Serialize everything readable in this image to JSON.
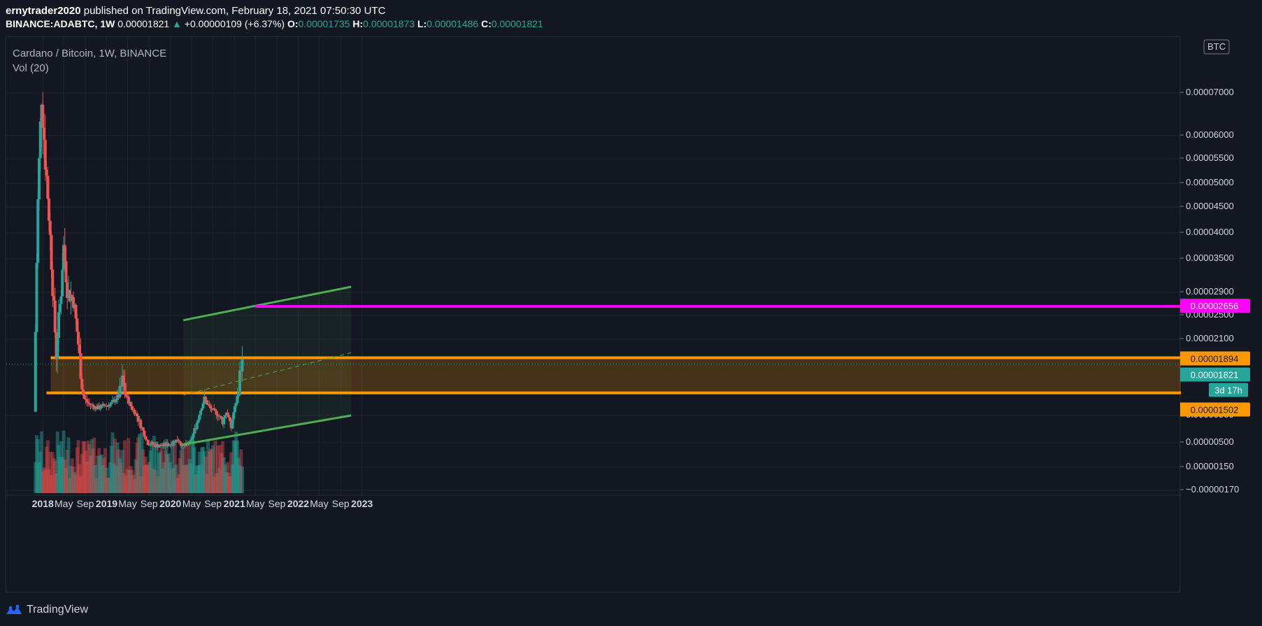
{
  "header": {
    "author": "ernytrader2020",
    "published": " published on TradingView.com, February 18, 2021 07:50:30 UTC",
    "symbol": "BINANCE:ADABTC, 1W",
    "last": "0.00001821",
    "arrow": "▲",
    "change": "+0.00000109 (+6.37%)",
    "o_label": "O:",
    "o_val": "0.00001735",
    "h_label": "H:",
    "h_val": "0.00001873",
    "l_label": "L:",
    "l_val": "0.00001486",
    "c_label": "C:",
    "c_val": "0.00001821"
  },
  "legend": {
    "title": "Cardano / Bitcoin, 1W, BINANCE",
    "volume": "Vol (20)"
  },
  "currency_badge": "BTC",
  "footer": {
    "brand": "TradingView"
  },
  "colors": {
    "background": "#131722",
    "up": "#26a69a",
    "down": "#ef5350",
    "channel": "#4caf50",
    "zone": "#ff9800",
    "target": "#ff00ff"
  },
  "chart_data": {
    "type": "candlestick",
    "title": "Cardano / Bitcoin, 1W, BINANCE",
    "x_ticks": [
      "2018",
      "May",
      "Sep",
      "2019",
      "May",
      "Sep",
      "2020",
      "May",
      "Sep",
      "2021",
      "May",
      "Sep",
      "2022",
      "May",
      "Sep",
      "2023"
    ],
    "y_ticks": [
      "0.00007000",
      "0.00006000",
      "0.00005500",
      "0.00005000",
      "0.00004500",
      "0.00004000",
      "0.00003500",
      "0.00002900",
      "0.00002500",
      "0.00002100",
      "0.00000900",
      "0.00000500",
      "0.00000150",
      "−0.00000170"
    ],
    "price_badges": [
      {
        "label": "0.00002656",
        "role": "target",
        "color": "#ff00ff"
      },
      {
        "label": "0.00001894",
        "role": "zone-top",
        "color": "#ff9800"
      },
      {
        "label": "0.00001821",
        "role": "last-price",
        "color": "#26a69a"
      },
      {
        "label": "3d 17h",
        "role": "countdown",
        "color": "#26a69a"
      },
      {
        "label": "0.00001502",
        "role": "zone-bottom",
        "color": "#ff9800"
      }
    ],
    "series": [
      {
        "name": "ADABTC",
        "kind": "candles",
        "anchors": [
          [
            "2017-11-20",
            1e-05
          ],
          [
            "2017-12-10",
            4.5e-05
          ],
          [
            "2018-01-01",
            7e-05
          ],
          [
            "2018-01-20",
            5.6e-05
          ],
          [
            "2018-02-10",
            4.5e-05
          ],
          [
            "2018-03-05",
            3e-05
          ],
          [
            "2018-03-25",
            1.9e-05
          ],
          [
            "2018-04-25",
            3e-05
          ],
          [
            "2018-05-05",
            3.8e-05
          ],
          [
            "2018-05-30",
            2.9e-05
          ],
          [
            "2018-07-01",
            2.8e-05
          ],
          [
            "2018-08-01",
            2e-05
          ],
          [
            "2018-09-01",
            1.35e-05
          ],
          [
            "2018-10-01",
            1.2e-05
          ],
          [
            "2018-11-15",
            1.1e-05
          ],
          [
            "2018-12-15",
            1.15e-05
          ],
          [
            "2019-02-01",
            1.2e-05
          ],
          [
            "2019-03-15",
            1.4e-05
          ],
          [
            "2019-04-10",
            1.65e-05
          ],
          [
            "2019-05-01",
            1.4e-05
          ],
          [
            "2019-06-01",
            1.1e-05
          ],
          [
            "2019-07-15",
            8e-06
          ],
          [
            "2019-09-01",
            5e-06
          ],
          [
            "2019-11-01",
            4.6e-06
          ],
          [
            "2020-01-01",
            4.8e-06
          ],
          [
            "2020-02-20",
            5.5e-06
          ],
          [
            "2020-03-20",
            4.5e-06
          ],
          [
            "2020-05-01",
            5e-06
          ],
          [
            "2020-06-15",
            8.5e-06
          ],
          [
            "2020-07-20",
            1.35e-05
          ],
          [
            "2020-08-20",
            1.1e-05
          ],
          [
            "2020-10-01",
            9.5e-06
          ],
          [
            "2020-11-01",
            8e-06
          ],
          [
            "2020-11-25",
            1e-05
          ],
          [
            "2020-12-20",
            7e-06
          ],
          [
            "2021-01-10",
            1.1e-05
          ],
          [
            "2021-02-15",
            1.82e-05
          ]
        ]
      },
      {
        "name": "Vol (20)",
        "kind": "volume"
      }
    ],
    "drawings": [
      {
        "type": "parallel-channel",
        "color": "#4caf50",
        "upper": [
          [
            "2020-03-15",
            2.42e-05
          ],
          [
            "2022-10-31",
            3e-05
          ]
        ],
        "lower": [
          [
            "2020-03-15",
            4.8e-06
          ],
          [
            "2022-10-31",
            9e-06
          ]
        ]
      },
      {
        "type": "horizontal-zone",
        "color": "#ff9800",
        "from": "2018-02-15",
        "to_edge": true,
        "top": 1.894e-05,
        "bottom": 1.502e-05
      },
      {
        "type": "horizontal-ray",
        "color": "#ff00ff",
        "from": "2021-05-01",
        "price": 2.656e-05
      },
      {
        "type": "dashed-midline",
        "color": "#4caf50",
        "from": [
          "2020-03-15",
          1.45e-05
        ],
        "to": [
          "2022-10-31",
          1.95e-05
        ]
      }
    ],
    "ylim": [
      -2e-07,
      8.2e-06
    ],
    "grid": true,
    "scale": "log-like"
  }
}
